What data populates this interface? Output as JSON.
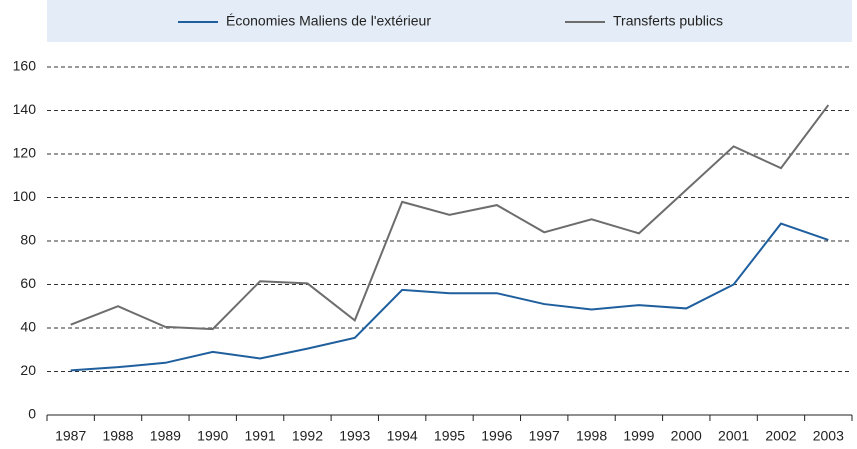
{
  "chart_data": {
    "type": "line",
    "categories": [
      "1987",
      "1988",
      "1989",
      "1990",
      "1991",
      "1992",
      "1993",
      "1994",
      "1995",
      "1996",
      "1997",
      "1998",
      "1999",
      "2000",
      "2001",
      "2002",
      "2003"
    ],
    "series": [
      {
        "name": "Économies Maliens de l'extérieur",
        "color": "#1f5f9e",
        "values": [
          20.5,
          22,
          24,
          29,
          26,
          30.5,
          35.5,
          57.5,
          56,
          56,
          51,
          48.5,
          50.5,
          49,
          60,
          88,
          80.5
        ]
      },
      {
        "name": "Transferts publics",
        "color": "#6d6d6d",
        "values": [
          41.5,
          50,
          40.5,
          39.5,
          61.5,
          60.5,
          43.5,
          98,
          92,
          96.5,
          84,
          90,
          83.5,
          103.5,
          123.5,
          113.5,
          142.5
        ]
      }
    ],
    "ylim": [
      0,
      160
    ],
    "yticks": [
      0,
      20,
      40,
      60,
      80,
      100,
      120,
      140,
      160
    ],
    "grid": true,
    "legend": "top"
  }
}
